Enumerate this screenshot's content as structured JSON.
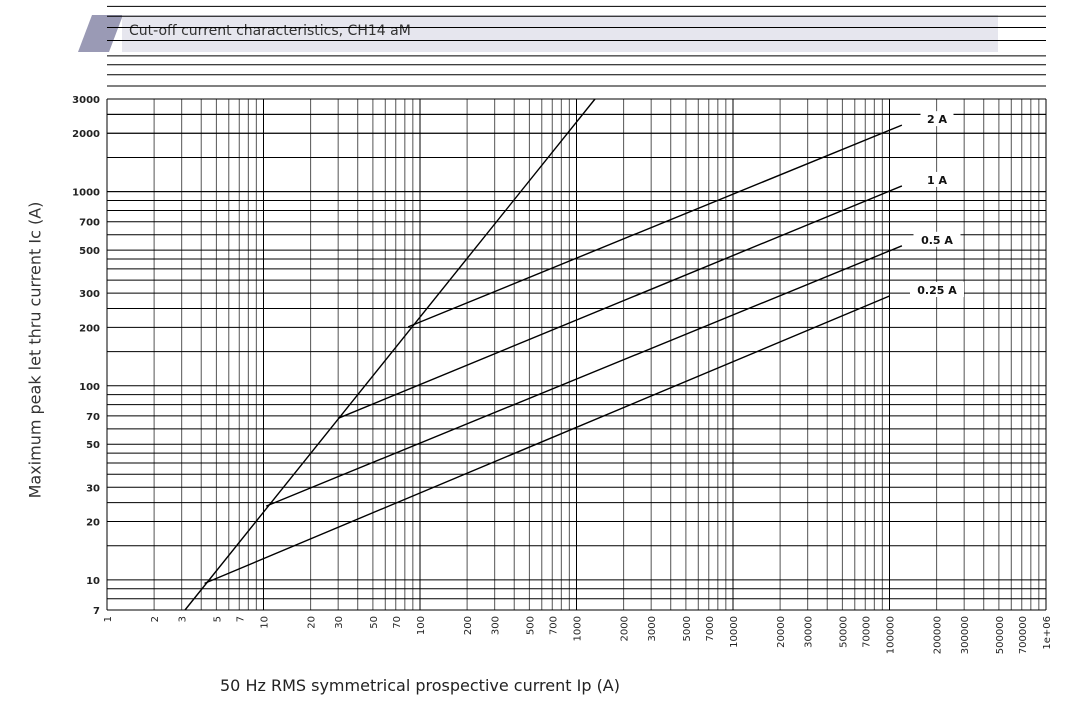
{
  "header": {
    "title": "Cut-off current characteristics, CH14 aM",
    "band_color": "#e6e6ee",
    "accent_color": "#9a9ab5"
  },
  "chart_data": {
    "type": "line",
    "title": "Cut-off current characteristics, CH14 aM",
    "xlabel": "50 Hz RMS symmetrical prospective current Ip (A)",
    "ylabel": "Maximum peak let thru current Ic (A)",
    "xscale": "log",
    "yscale": "log",
    "xlim": [
      1,
      1000000
    ],
    "ylim": [
      7,
      3000
    ],
    "grid": true,
    "x_ticks": [
      "1",
      "2",
      "3",
      "5",
      "7",
      "10",
      "20",
      "30",
      "50",
      "70",
      "100",
      "200",
      "300",
      "500",
      "700",
      "1000",
      "2000",
      "3000",
      "5000",
      "7000",
      "10000",
      "20000",
      "30000",
      "50000",
      "70000",
      "100000",
      "200000",
      "300000",
      "500000",
      "700000",
      "1e+06"
    ],
    "y_ticks": [
      "7",
      "10",
      "20",
      "30",
      "50",
      "70",
      "100",
      "200",
      "300",
      "500",
      "700",
      "1000",
      "2000",
      "3000"
    ],
    "series": [
      {
        "points": [
          [
            3.15,
            7
          ],
          [
            1313,
            3000
          ]
        ]
      },
      {
        "name": "2 A",
        "points": [
          [
            84,
            201
          ],
          [
            120000,
            2200
          ]
        ]
      },
      {
        "name": "1 A",
        "points": [
          [
            30,
            68
          ],
          [
            120000,
            1070
          ]
        ]
      },
      {
        "name": "0.5 A",
        "points": [
          [
            10.4,
            24
          ],
          [
            120000,
            526
          ]
        ]
      },
      {
        "name": "0.25 A",
        "points": [
          [
            4.2,
            9.6
          ],
          [
            100000,
            290
          ]
        ]
      }
    ]
  }
}
